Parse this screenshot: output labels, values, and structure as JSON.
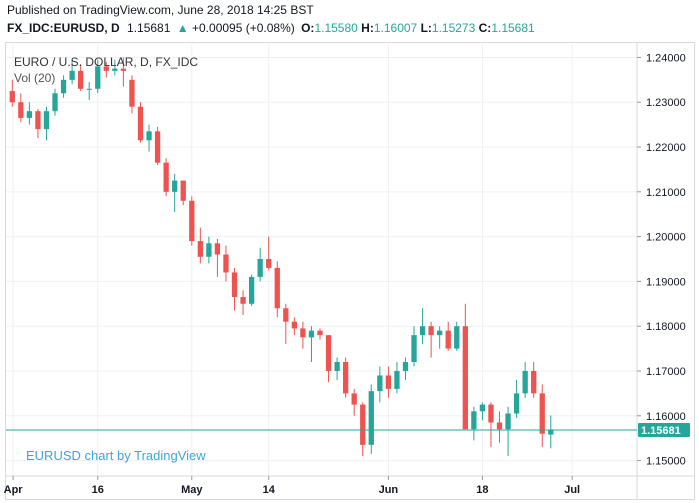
{
  "header": {
    "published": "Published on TradingView.com, June 28, 2018 14:25 BST",
    "symbol": "FX_IDC:EURUSD, D",
    "last": "1.15681",
    "change_arrow": "▲",
    "change": "+0.00095 (+0.08%)",
    "o_label": "O:",
    "o_val": "1.15580",
    "h_label": "H:",
    "h_val": "1.16007",
    "l_label": "L:",
    "l_val": "1.15273",
    "c_label": "C:",
    "c_val": "1.15681"
  },
  "pane": {
    "title": "EURO / U.S. DOLLAR, D, FX_IDC",
    "volume_label": "Vol (20)",
    "watermark": "EURUSD chart by TradingView",
    "price_tag": "1.15681"
  },
  "colors": {
    "up": "#26a69a",
    "down": "#ef5350",
    "grid": "#eef0f3",
    "axis_text": "#131722",
    "watermark": "#3ea6d6",
    "price_tag": "#26a69a"
  },
  "chart_data": {
    "type": "candlestick",
    "title": "EURO / U.S. DOLLAR, D, FX_IDC",
    "x_ticks": [
      "Apr",
      "16",
      "May",
      "14",
      "Jun",
      "18",
      "Jul"
    ],
    "y_ticks": [
      "1.24000",
      "1.23000",
      "1.22000",
      "1.21000",
      "1.20000",
      "1.19000",
      "1.18000",
      "1.17000",
      "1.16000",
      "1.15000"
    ],
    "ylim": [
      1.147,
      1.243
    ],
    "grid": true,
    "last_price": 1.15681,
    "candles": [
      {
        "date": "2018-04-02",
        "o": 1.2325,
        "h": 1.235,
        "l": 1.229,
        "c": 1.23
      },
      {
        "date": "2018-04-03",
        "o": 1.23,
        "h": 1.232,
        "l": 1.2255,
        "c": 1.2265
      },
      {
        "date": "2018-04-04",
        "o": 1.2265,
        "h": 1.23,
        "l": 1.225,
        "c": 1.228
      },
      {
        "date": "2018-04-05",
        "o": 1.228,
        "h": 1.2285,
        "l": 1.222,
        "c": 1.224
      },
      {
        "date": "2018-04-06",
        "o": 1.224,
        "h": 1.229,
        "l": 1.2215,
        "c": 1.228
      },
      {
        "date": "2018-04-09",
        "o": 1.228,
        "h": 1.233,
        "l": 1.227,
        "c": 1.232
      },
      {
        "date": "2018-04-10",
        "o": 1.232,
        "h": 1.236,
        "l": 1.231,
        "c": 1.235
      },
      {
        "date": "2018-04-11",
        "o": 1.235,
        "h": 1.2395,
        "l": 1.234,
        "c": 1.237
      },
      {
        "date": "2018-04-12",
        "o": 1.237,
        "h": 1.2385,
        "l": 1.2325,
        "c": 1.233
      },
      {
        "date": "2018-04-13",
        "o": 1.233,
        "h": 1.2345,
        "l": 1.2305,
        "c": 1.233
      },
      {
        "date": "2018-04-16",
        "o": 1.233,
        "h": 1.2395,
        "l": 1.232,
        "c": 1.238
      },
      {
        "date": "2018-04-17",
        "o": 1.238,
        "h": 1.239,
        "l": 1.2355,
        "c": 1.237
      },
      {
        "date": "2018-04-18",
        "o": 1.237,
        "h": 1.2395,
        "l": 1.236,
        "c": 1.2375
      },
      {
        "date": "2018-04-19",
        "o": 1.2375,
        "h": 1.24,
        "l": 1.2335,
        "c": 1.237
      },
      {
        "date": "2018-04-20",
        "o": 1.235,
        "h": 1.236,
        "l": 1.2275,
        "c": 1.229
      },
      {
        "date": "2018-04-23",
        "o": 1.229,
        "h": 1.23,
        "l": 1.221,
        "c": 1.2215
      },
      {
        "date": "2018-04-24",
        "o": 1.2215,
        "h": 1.225,
        "l": 1.219,
        "c": 1.2235
      },
      {
        "date": "2018-04-25",
        "o": 1.2235,
        "h": 1.2245,
        "l": 1.216,
        "c": 1.2165
      },
      {
        "date": "2018-04-26",
        "o": 1.2165,
        "h": 1.2175,
        "l": 1.209,
        "c": 1.21
      },
      {
        "date": "2018-04-27",
        "o": 1.21,
        "h": 1.214,
        "l": 1.2055,
        "c": 1.2125
      },
      {
        "date": "2018-04-30",
        "o": 1.2125,
        "h": 1.2125,
        "l": 1.207,
        "c": 1.208
      },
      {
        "date": "2018-05-01",
        "o": 1.208,
        "h": 1.209,
        "l": 1.198,
        "c": 1.199
      },
      {
        "date": "2018-05-02",
        "o": 1.199,
        "h": 1.202,
        "l": 1.194,
        "c": 1.1955
      },
      {
        "date": "2018-05-03",
        "o": 1.1955,
        "h": 1.2,
        "l": 1.194,
        "c": 1.1985
      },
      {
        "date": "2018-05-04",
        "o": 1.1985,
        "h": 1.1995,
        "l": 1.191,
        "c": 1.196
      },
      {
        "date": "2018-05-07",
        "o": 1.196,
        "h": 1.198,
        "l": 1.19,
        "c": 1.192
      },
      {
        "date": "2018-05-08",
        "o": 1.192,
        "h": 1.193,
        "l": 1.1835,
        "c": 1.1865
      },
      {
        "date": "2018-05-09",
        "o": 1.1865,
        "h": 1.188,
        "l": 1.1825,
        "c": 1.185
      },
      {
        "date": "2018-05-10",
        "o": 1.185,
        "h": 1.1915,
        "l": 1.1845,
        "c": 1.191
      },
      {
        "date": "2018-05-11",
        "o": 1.191,
        "h": 1.1975,
        "l": 1.19,
        "c": 1.195
      },
      {
        "date": "2018-05-14",
        "o": 1.195,
        "h": 1.2,
        "l": 1.1925,
        "c": 1.193
      },
      {
        "date": "2018-05-15",
        "o": 1.193,
        "h": 1.1945,
        "l": 1.182,
        "c": 1.184
      },
      {
        "date": "2018-05-16",
        "o": 1.184,
        "h": 1.185,
        "l": 1.176,
        "c": 1.181
      },
      {
        "date": "2018-05-17",
        "o": 1.181,
        "h": 1.182,
        "l": 1.178,
        "c": 1.1795
      },
      {
        "date": "2018-05-18",
        "o": 1.1795,
        "h": 1.181,
        "l": 1.175,
        "c": 1.1775
      },
      {
        "date": "2018-05-21",
        "o": 1.1775,
        "h": 1.18,
        "l": 1.172,
        "c": 1.179
      },
      {
        "date": "2018-05-22",
        "o": 1.179,
        "h": 1.1795,
        "l": 1.177,
        "c": 1.178
      },
      {
        "date": "2018-05-23",
        "o": 1.178,
        "h": 1.178,
        "l": 1.1675,
        "c": 1.17
      },
      {
        "date": "2018-05-24",
        "o": 1.17,
        "h": 1.173,
        "l": 1.168,
        "c": 1.172
      },
      {
        "date": "2018-05-25",
        "o": 1.172,
        "h": 1.173,
        "l": 1.164,
        "c": 1.165
      },
      {
        "date": "2018-05-28",
        "o": 1.165,
        "h": 1.166,
        "l": 1.16,
        "c": 1.1625
      },
      {
        "date": "2018-05-29",
        "o": 1.1625,
        "h": 1.163,
        "l": 1.151,
        "c": 1.1535
      },
      {
        "date": "2018-05-30",
        "o": 1.1535,
        "h": 1.167,
        "l": 1.1515,
        "c": 1.1655
      },
      {
        "date": "2018-05-31",
        "o": 1.1655,
        "h": 1.171,
        "l": 1.163,
        "c": 1.169
      },
      {
        "date": "2018-06-01",
        "o": 1.169,
        "h": 1.171,
        "l": 1.164,
        "c": 1.166
      },
      {
        "date": "2018-06-04",
        "o": 1.166,
        "h": 1.172,
        "l": 1.165,
        "c": 1.17
      },
      {
        "date": "2018-06-05",
        "o": 1.17,
        "h": 1.173,
        "l": 1.168,
        "c": 1.172
      },
      {
        "date": "2018-06-06",
        "o": 1.172,
        "h": 1.18,
        "l": 1.171,
        "c": 1.178
      },
      {
        "date": "2018-06-07",
        "o": 1.178,
        "h": 1.184,
        "l": 1.176,
        "c": 1.18
      },
      {
        "date": "2018-06-08",
        "o": 1.18,
        "h": 1.181,
        "l": 1.173,
        "c": 1.178
      },
      {
        "date": "2018-06-11",
        "o": 1.178,
        "h": 1.18,
        "l": 1.175,
        "c": 1.179
      },
      {
        "date": "2018-06-12",
        "o": 1.179,
        "h": 1.181,
        "l": 1.1745,
        "c": 1.175
      },
      {
        "date": "2018-06-13",
        "o": 1.175,
        "h": 1.181,
        "l": 1.1745,
        "c": 1.18
      },
      {
        "date": "2018-06-14",
        "o": 1.18,
        "h": 1.185,
        "l": 1.157,
        "c": 1.157
      },
      {
        "date": "2018-06-15",
        "o": 1.157,
        "h": 1.162,
        "l": 1.1545,
        "c": 1.161
      },
      {
        "date": "2018-06-18",
        "o": 1.161,
        "h": 1.163,
        "l": 1.159,
        "c": 1.1625
      },
      {
        "date": "2018-06-19",
        "o": 1.1625,
        "h": 1.163,
        "l": 1.153,
        "c": 1.1585
      },
      {
        "date": "2018-06-20",
        "o": 1.1585,
        "h": 1.161,
        "l": 1.154,
        "c": 1.157
      },
      {
        "date": "2018-06-21",
        "o": 1.157,
        "h": 1.162,
        "l": 1.151,
        "c": 1.1605
      },
      {
        "date": "2018-06-22",
        "o": 1.1605,
        "h": 1.168,
        "l": 1.1595,
        "c": 1.165
      },
      {
        "date": "2018-06-25",
        "o": 1.165,
        "h": 1.172,
        "l": 1.164,
        "c": 1.17
      },
      {
        "date": "2018-06-26",
        "o": 1.17,
        "h": 1.172,
        "l": 1.164,
        "c": 1.165
      },
      {
        "date": "2018-06-27",
        "o": 1.165,
        "h": 1.167,
        "l": 1.153,
        "c": 1.156
      },
      {
        "date": "2018-06-28",
        "o": 1.1558,
        "h": 1.16007,
        "l": 1.15273,
        "c": 1.15681
      }
    ]
  }
}
